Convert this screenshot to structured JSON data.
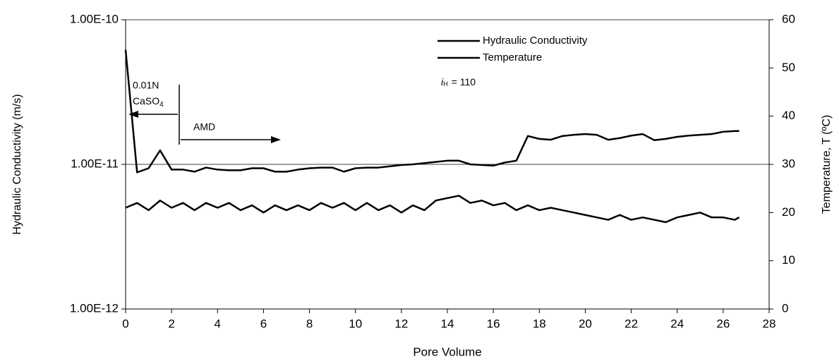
{
  "chart_data": {
    "type": "line",
    "x_label": "Pore Volume",
    "y_label": "Hydraulic Conductivity (m/s)",
    "y2_label": "Temperature, T (ºC)",
    "x": [
      0,
      0.5,
      1,
      1.5,
      2,
      2.5,
      3,
      3.5,
      4,
      4.5,
      5,
      5.5,
      6,
      6.5,
      7,
      7.5,
      8,
      8.5,
      9,
      9.5,
      10,
      10.5,
      11,
      11.5,
      12,
      12.5,
      13,
      13.5,
      14,
      14.5,
      15,
      15.5,
      16,
      16.5,
      17,
      17.5,
      18,
      18.5,
      19,
      19.5,
      20,
      20.5,
      21,
      21.5,
      22,
      22.5,
      23,
      23.5,
      24,
      24.5,
      25,
      25.5,
      26,
      26.5,
      26.7
    ],
    "series": [
      {
        "name": "Hydraulic Conductivity",
        "color": "#000000",
        "values": [
          6.2e-11,
          8.8e-12,
          9.4e-12,
          1.25e-11,
          9.2e-12,
          9.2e-12,
          8.9e-12,
          9.5e-12,
          9.2e-12,
          9.1e-12,
          9.1e-12,
          9.4e-12,
          9.4e-12,
          8.9e-12,
          8.9e-12,
          9.2e-12,
          9.4e-12,
          9.5e-12,
          9.5e-12,
          8.9e-12,
          9.4e-12,
          9.5e-12,
          9.5e-12,
          9.7e-12,
          9.9e-12,
          1e-11,
          1.02e-11,
          1.04e-11,
          1.06e-11,
          1.06e-11,
          1e-11,
          9.9e-12,
          9.8e-12,
          1.03e-11,
          1.06e-11,
          1.57e-11,
          1.5e-11,
          1.48e-11,
          1.57e-11,
          1.6e-11,
          1.62e-11,
          1.6e-11,
          1.48e-11,
          1.52e-11,
          1.58e-11,
          1.62e-11,
          1.47e-11,
          1.5e-11,
          1.55e-11,
          1.58e-11,
          1.6e-11,
          1.62e-11,
          1.68e-11,
          1.7e-11,
          1.7e-11
        ]
      },
      {
        "name": "Temperature",
        "color": "#000000",
        "axis": "y2",
        "values": [
          21,
          22,
          20.5,
          22.5,
          21,
          22,
          20.5,
          22,
          21,
          22,
          20.5,
          21.5,
          20,
          21.5,
          20.5,
          21.5,
          20.5,
          22,
          21,
          22,
          20.5,
          22,
          20.5,
          21.5,
          20,
          21.5,
          20.5,
          22.5,
          23,
          23.5,
          22,
          22.5,
          21.5,
          22,
          20.5,
          21.5,
          20.5,
          21,
          20.5,
          20,
          19.5,
          19,
          18.5,
          19.5,
          18.5,
          19,
          18.5,
          18,
          19,
          19.5,
          20,
          19,
          19,
          18.5,
          19
        ]
      }
    ],
    "xlim": [
      0,
      28
    ],
    "xticks": [
      0,
      2,
      4,
      6,
      8,
      10,
      12,
      14,
      16,
      18,
      20,
      22,
      24,
      26,
      28
    ],
    "ylog": true,
    "ylim": [
      1e-12,
      1e-10
    ],
    "yticks": [
      {
        "value": 1e-12,
        "label": "1.00E-12"
      },
      {
        "value": 1e-11,
        "label": "1.00E-11"
      },
      {
        "value": 1e-10,
        "label": "1.00E-10"
      }
    ],
    "y2lim": [
      0,
      60
    ],
    "y2ticks": [
      0,
      10,
      20,
      30,
      40,
      50,
      60
    ],
    "grid": true,
    "annotations": {
      "solution": "0.01N",
      "solution_formula": "CaSO",
      "solution_formula_sub": "4",
      "influent": "AMD",
      "gradient_symbol": "i",
      "gradient_sub": "H",
      "gradient_value": "= 110"
    }
  }
}
